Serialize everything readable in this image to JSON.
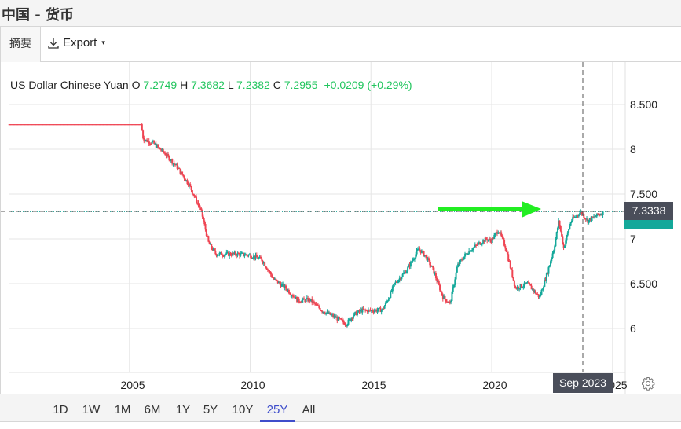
{
  "window": {
    "title": "中国 - 货币"
  },
  "toolbar": {
    "summary_tab": "摘要",
    "export_label": "Export",
    "export_icon": "download-icon",
    "caret": "▾"
  },
  "legend": {
    "name": "US Dollar Chinese Yuan",
    "open_label": "O",
    "open": "7.2749",
    "high_label": "H",
    "high": "7.3682",
    "low_label": "L",
    "low": "7.2382",
    "close_label": "C",
    "close": "7.2955",
    "change": "+0.0209 (+0.29%)"
  },
  "crosshair": {
    "price": "7.3338",
    "date": "Sep 2023"
  },
  "ranges": [
    {
      "label": "1D"
    },
    {
      "label": "1W"
    },
    {
      "label": "1M"
    },
    {
      "label": "6M"
    },
    {
      "label": "1Y"
    },
    {
      "label": "5Y"
    },
    {
      "label": "10Y"
    },
    {
      "label": "25Y",
      "active": true
    },
    {
      "label": "All"
    }
  ],
  "colors": {
    "up": "#14a89a",
    "down": "#ef4452",
    "legend_value": "#22c55e",
    "arrow": "#22ee22",
    "active_range": "#3f4ecb"
  },
  "chart_data": {
    "type": "candlestick",
    "title": "US Dollar Chinese Yuan",
    "xlabel": "",
    "ylabel": "",
    "x_ticks": [
      "2005",
      "2010",
      "2015",
      "2020",
      "2025"
    ],
    "y_ticks": [
      "6",
      "6.500",
      "7",
      "7.500",
      "8",
      "8.500"
    ],
    "ylim": [
      5.55,
      8.85
    ],
    "grid": true,
    "annotations": [
      {
        "type": "horizontal-dashed-line",
        "value": 7.3338
      },
      {
        "type": "vertical-dashed-line",
        "at": "Sep 2023"
      },
      {
        "type": "arrow",
        "color": "#22ee22",
        "pointing_to": 7.3338
      },
      {
        "type": "last-price-dotted-line",
        "value": 7.2955
      }
    ],
    "x": [
      2000.0,
      2001.0,
      2002.0,
      2003.0,
      2004.0,
      2005.0,
      2005.5,
      2005.6,
      2006.0,
      2006.5,
      2007.0,
      2007.5,
      2008.0,
      2008.3,
      2008.6,
      2009.0,
      2009.5,
      2010.0,
      2010.5,
      2011.0,
      2011.5,
      2012.0,
      2012.5,
      2013.0,
      2013.5,
      2014.0,
      2014.3,
      2014.6,
      2015.0,
      2015.5,
      2015.8,
      2016.0,
      2016.5,
      2017.0,
      2017.3,
      2017.6,
      2018.0,
      2018.3,
      2018.6,
      2019.0,
      2019.5,
      2019.8,
      2020.0,
      2020.3,
      2020.6,
      2021.0,
      2021.5,
      2022.0,
      2022.3,
      2022.6,
      2022.8,
      2023.0,
      2023.3,
      2023.7,
      2024.0,
      2024.3,
      2024.6
    ],
    "values": [
      8.28,
      8.28,
      8.28,
      8.28,
      8.28,
      8.28,
      8.28,
      8.11,
      8.07,
      7.95,
      7.8,
      7.6,
      7.3,
      6.95,
      6.83,
      6.83,
      6.83,
      6.82,
      6.77,
      6.55,
      6.45,
      6.31,
      6.32,
      6.2,
      6.13,
      6.05,
      6.15,
      6.2,
      6.2,
      6.21,
      6.37,
      6.5,
      6.65,
      6.89,
      6.8,
      6.65,
      6.35,
      6.28,
      6.7,
      6.85,
      6.95,
      7.0,
      6.98,
      7.1,
      6.9,
      6.45,
      6.5,
      6.35,
      6.6,
      6.9,
      7.2,
      6.9,
      7.2,
      7.3,
      7.2,
      7.25,
      7.29
    ]
  }
}
